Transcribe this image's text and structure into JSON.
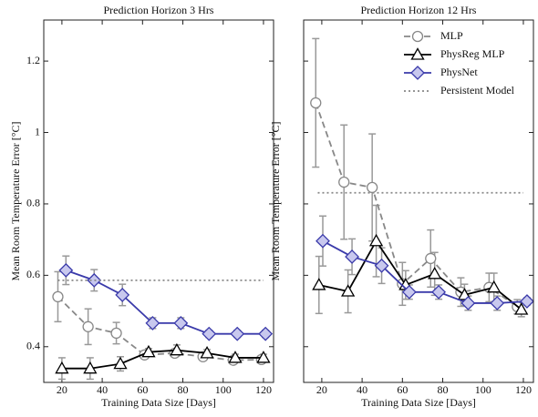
{
  "chart_data": [
    {
      "type": "line",
      "title": "Prediction Horizon 3 Hrs",
      "x_label": "Training Data Size [Days]",
      "y_label": "Mean Room Temperature Error [°C]",
      "xlim": [
        11,
        125
      ],
      "xticks": [
        20,
        40,
        60,
        80,
        100,
        120
      ],
      "ylim": [
        0.3,
        1.315
      ],
      "yticks": [
        0.4,
        0.6,
        0.8,
        1.0,
        1.2
      ],
      "show_ytick_labels": true,
      "series": [
        {
          "name": "MLP",
          "color": "#888888",
          "marker": "o",
          "linestyle": "dashed",
          "x": [
            18,
            33,
            47,
            61,
            76,
            90,
            105,
            119
          ],
          "values": [
            0.54,
            0.456,
            0.438,
            0.377,
            0.382,
            0.372,
            0.362,
            0.364
          ],
          "errors": [
            0.07,
            0.05,
            0.03,
            0.01,
            0.01,
            0.01,
            0.01,
            0.01
          ]
        },
        {
          "name": "PhysReg MLP",
          "color": "#000000",
          "marker": "^",
          "linestyle": "solid",
          "x": [
            20,
            34,
            49,
            63,
            77,
            92,
            106,
            120
          ],
          "values": [
            0.339,
            0.339,
            0.352,
            0.385,
            0.39,
            0.382,
            0.369,
            0.369
          ],
          "errors": [
            0.03,
            0.03,
            0.02,
            0.01,
            0.015,
            0.01,
            0.01,
            0.01
          ]
        },
        {
          "name": "PhysNet",
          "color": "#3a3aaa",
          "marker": "D",
          "linestyle": "solid",
          "x": [
            22,
            36,
            50,
            65,
            79,
            93,
            107,
            121
          ],
          "values": [
            0.614,
            0.586,
            0.545,
            0.466,
            0.466,
            0.436,
            0.436,
            0.436
          ],
          "errors": [
            0.04,
            0.03,
            0.03,
            0.015,
            0.015,
            0.01,
            0.01,
            0.01
          ]
        },
        {
          "name": "Persistent Model",
          "color": "#888888",
          "marker": "none",
          "linestyle": "dotted",
          "x": [
            18,
            120
          ],
          "values": [
            0.586,
            0.586
          ]
        }
      ]
    },
    {
      "type": "line",
      "title": "Prediction Horizon 12 Hrs",
      "x_label": "Training Data Size [Days]",
      "y_label": "Mean Room Temperature Error [°C]",
      "xlim": [
        11,
        125
      ],
      "xticks": [
        20,
        40,
        60,
        80,
        100,
        120
      ],
      "ylim": [
        0.3,
        1.315
      ],
      "yticks": [
        0.4,
        0.6,
        0.8,
        1.0,
        1.2
      ],
      "show_ytick_labels": false,
      "legend": "upper right",
      "series": [
        {
          "name": "MLP",
          "color": "#888888",
          "marker": "o",
          "linestyle": "dashed",
          "x": [
            17,
            31,
            45,
            60,
            74,
            89,
            103,
            117
          ],
          "values": [
            1.083,
            0.861,
            0.846,
            0.576,
            0.647,
            0.553,
            0.566,
            0.512
          ],
          "errors": [
            0.18,
            0.16,
            0.15,
            0.06,
            0.08,
            0.04,
            0.04,
            0.02
          ]
        },
        {
          "name": "PhysReg MLP",
          "color": "#000000",
          "marker": "^",
          "linestyle": "solid",
          "x": [
            18.6,
            33,
            47,
            61.6,
            76,
            90.8,
            105.4,
            119
          ],
          "values": [
            0.573,
            0.555,
            0.696,
            0.573,
            0.604,
            0.545,
            0.566,
            0.504
          ],
          "errors": [
            0.08,
            0.06,
            0.1,
            0.04,
            0.06,
            0.03,
            0.04,
            0.02
          ]
        },
        {
          "name": "PhysNet",
          "color": "#3a3aaa",
          "marker": "D",
          "linestyle": "solid",
          "x": [
            20.5,
            35,
            49.7,
            63.4,
            78,
            92.6,
            107,
            121.8
          ],
          "values": [
            0.696,
            0.652,
            0.627,
            0.553,
            0.553,
            0.522,
            0.522,
            0.527
          ],
          "errors": [
            0.07,
            0.05,
            0.05,
            0.02,
            0.02,
            0.02,
            0.02,
            0.01
          ]
        },
        {
          "name": "Persistent Model",
          "color": "#888888",
          "marker": "none",
          "linestyle": "dotted",
          "x": [
            18,
            120
          ],
          "values": [
            0.831,
            0.831
          ]
        }
      ]
    }
  ]
}
